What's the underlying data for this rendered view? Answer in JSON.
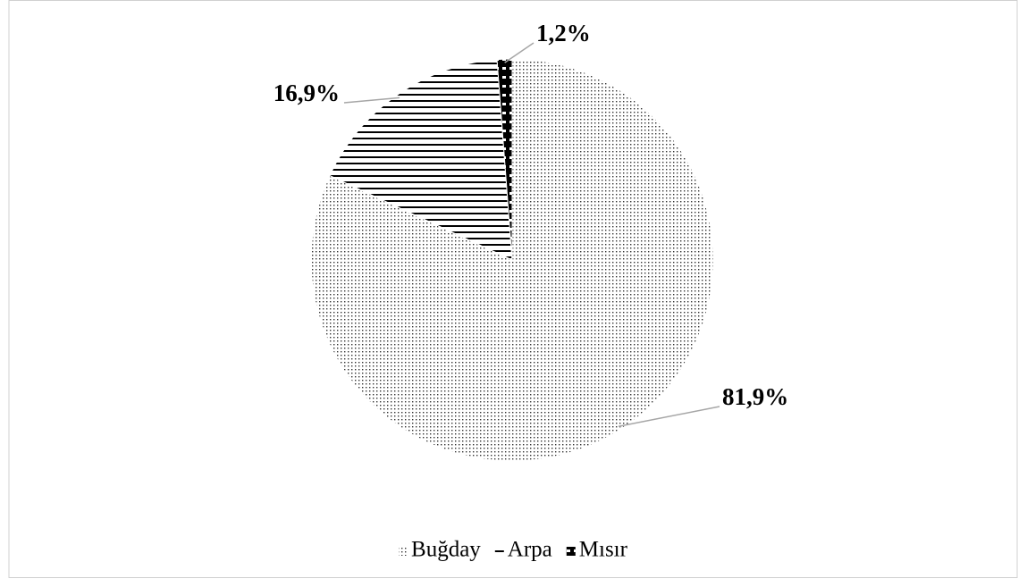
{
  "chart_data": {
    "type": "pie",
    "categories": [
      "Buğday",
      "Arpa",
      "Mısır"
    ],
    "values": [
      81.9,
      16.9,
      1.2
    ],
    "value_labels": [
      "81,9%",
      "16,9%",
      "1,2%"
    ],
    "legend": "bottom"
  }
}
